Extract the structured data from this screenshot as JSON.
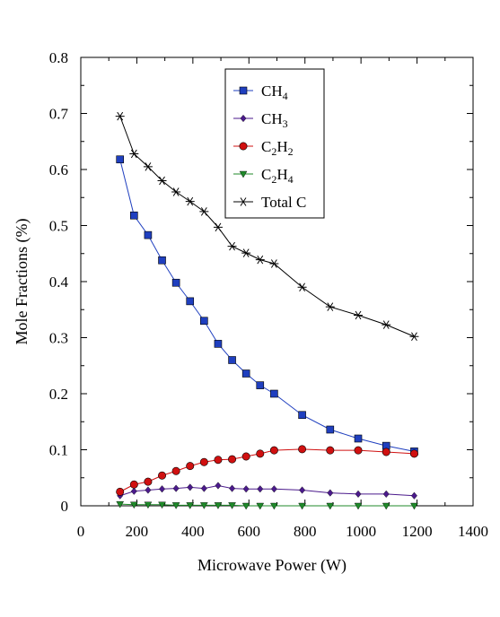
{
  "chart_data": {
    "type": "line",
    "title": "",
    "xlabel": "Microwave Power (W)",
    "ylabel": "Mole Fractions (%)",
    "xlim": [
      0,
      1400
    ],
    "ylim": [
      0,
      0.8
    ],
    "xticks": [
      0,
      200,
      400,
      600,
      800,
      1000,
      1200,
      1400
    ],
    "yticks": [
      0,
      0.1,
      0.2,
      0.3,
      0.4,
      0.5,
      0.6,
      0.7,
      0.8
    ],
    "xtick_labels": [
      "0",
      "200",
      "400",
      "600",
      "800",
      "1000",
      "1200",
      "1400"
    ],
    "ytick_labels": [
      "0",
      "0.1",
      "0.2",
      "0.3",
      "0.4",
      "0.5",
      "0.6",
      "0.7",
      "0.8"
    ],
    "grid": false,
    "legend_position": "top-center",
    "series": [
      {
        "name": "CH4",
        "label_parts": [
          {
            "t": "CH",
            "sub": false
          },
          {
            "t": "4",
            "sub": true
          }
        ],
        "marker": "square",
        "color": "#1f3fbf",
        "x": [
          140,
          190,
          240,
          290,
          340,
          390,
          440,
          490,
          540,
          590,
          640,
          690,
          790,
          890,
          990,
          1090,
          1190
        ],
        "y": [
          0.618,
          0.518,
          0.483,
          0.438,
          0.398,
          0.365,
          0.33,
          0.289,
          0.26,
          0.236,
          0.215,
          0.2,
          0.162,
          0.136,
          0.12,
          0.107,
          0.097
        ]
      },
      {
        "name": "CH3",
        "label_parts": [
          {
            "t": "CH",
            "sub": false
          },
          {
            "t": "3",
            "sub": true
          }
        ],
        "marker": "diamond",
        "color": "#4b1a8c",
        "x": [
          140,
          190,
          240,
          290,
          340,
          390,
          440,
          490,
          540,
          590,
          640,
          690,
          790,
          890,
          990,
          1090,
          1190
        ],
        "y": [
          0.018,
          0.026,
          0.028,
          0.03,
          0.031,
          0.033,
          0.031,
          0.036,
          0.031,
          0.03,
          0.03,
          0.03,
          0.028,
          0.023,
          0.021,
          0.021,
          0.018
        ]
      },
      {
        "name": "C2H2",
        "label_parts": [
          {
            "t": "C",
            "sub": false
          },
          {
            "t": "2",
            "sub": true
          },
          {
            "t": "H",
            "sub": false
          },
          {
            "t": "2",
            "sub": true
          }
        ],
        "marker": "circle",
        "color": "#d01010",
        "x": [
          140,
          190,
          240,
          290,
          340,
          390,
          440,
          490,
          540,
          590,
          640,
          690,
          790,
          890,
          990,
          1090,
          1190
        ],
        "y": [
          0.025,
          0.038,
          0.043,
          0.054,
          0.062,
          0.071,
          0.078,
          0.082,
          0.083,
          0.088,
          0.093,
          0.099,
          0.101,
          0.099,
          0.099,
          0.096,
          0.093
        ]
      },
      {
        "name": "C2H4",
        "label_parts": [
          {
            "t": "C",
            "sub": false
          },
          {
            "t": "2",
            "sub": true
          },
          {
            "t": "H",
            "sub": false
          },
          {
            "t": "4",
            "sub": true
          }
        ],
        "marker": "triangle-down",
        "color": "#1f8a2a",
        "x": [
          140,
          190,
          240,
          290,
          340,
          390,
          440,
          490,
          540,
          590,
          640,
          690,
          790,
          890,
          990,
          1090,
          1190
        ],
        "y": [
          0.003,
          0.002,
          0.002,
          0.002,
          0.001,
          0.001,
          0.001,
          0.001,
          0.001,
          0.0,
          0.0,
          0.0,
          0.0,
          0.0,
          0.0,
          0.0,
          0.0
        ]
      },
      {
        "name": "Total C",
        "label_parts": [
          {
            "t": "Total C",
            "sub": false
          }
        ],
        "marker": "star",
        "color": "#000000",
        "x": [
          140,
          190,
          240,
          290,
          340,
          390,
          440,
          490,
          540,
          590,
          640,
          690,
          790,
          890,
          990,
          1090,
          1190
        ],
        "y": [
          0.695,
          0.628,
          0.605,
          0.58,
          0.56,
          0.543,
          0.525,
          0.497,
          0.463,
          0.451,
          0.439,
          0.432,
          0.39,
          0.355,
          0.34,
          0.323,
          0.302
        ]
      }
    ]
  }
}
